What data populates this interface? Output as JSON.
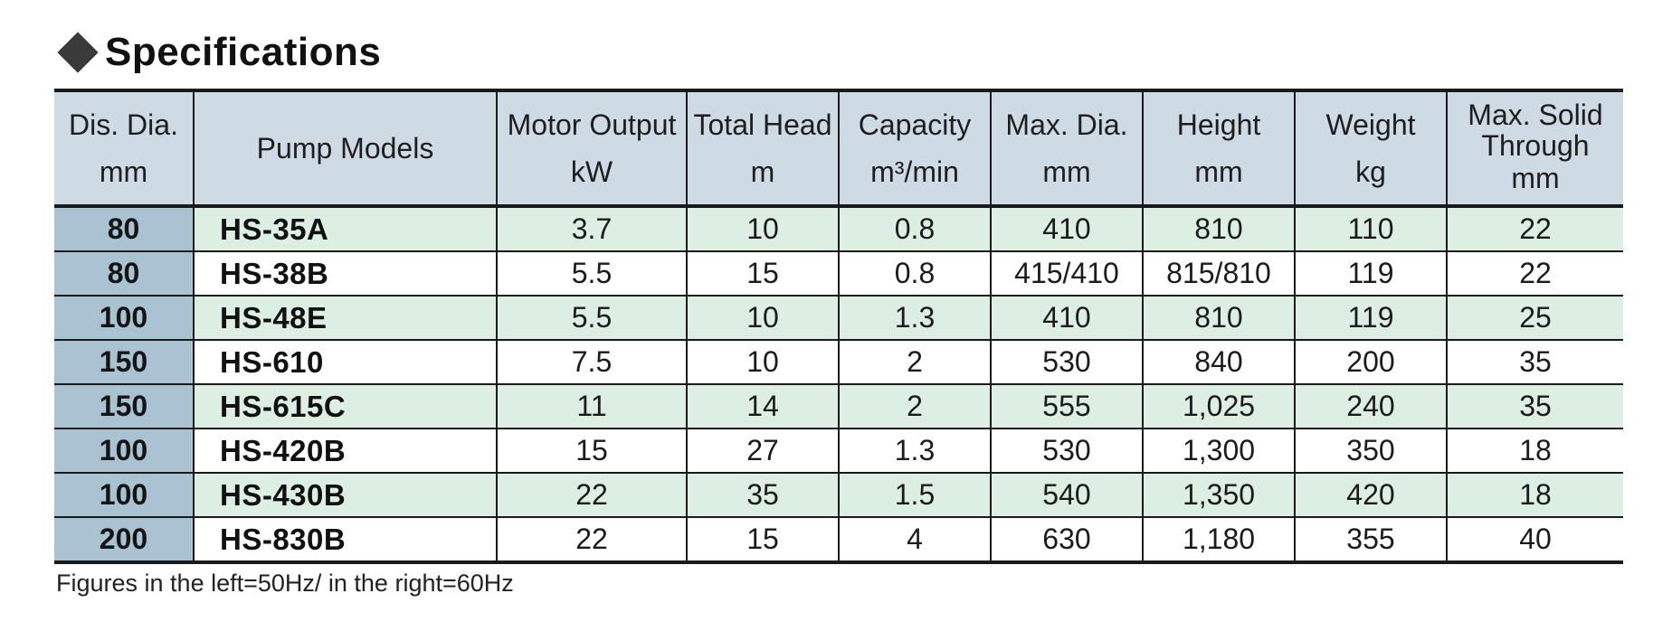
{
  "title": "Specifications",
  "table": {
    "headers": [
      {
        "line1": "Dis. Dia.",
        "line2": "mm"
      },
      {
        "line1": "Pump Models",
        "line2": ""
      },
      {
        "line1": "Motor Output",
        "line2": "kW"
      },
      {
        "line1": "Total Head",
        "line2": "m"
      },
      {
        "line1": "Capacity",
        "line2": "m³/min"
      },
      {
        "line1": "Max. Dia.",
        "line2": "mm"
      },
      {
        "line1": "Height",
        "line2": "mm"
      },
      {
        "line1": "Weight",
        "line2": "kg"
      },
      {
        "line1": "Max. Solid",
        "line1b": "Through",
        "line2": "mm"
      }
    ],
    "rows": [
      [
        "80",
        "HS-35A",
        "3.7",
        "10",
        "0.8",
        "410",
        "810",
        "110",
        "22"
      ],
      [
        "80",
        "HS-38B",
        "5.5",
        "15",
        "0.8",
        "415/410",
        "815/810",
        "119",
        "22"
      ],
      [
        "100",
        "HS-48E",
        "5.5",
        "10",
        "1.3",
        "410",
        "810",
        "119",
        "25"
      ],
      [
        "150",
        "HS-610",
        "7.5",
        "10",
        "2",
        "530",
        "840",
        "200",
        "35"
      ],
      [
        "150",
        "HS-615C",
        "11",
        "14",
        "2",
        "555",
        "1,025",
        "240",
        "35"
      ],
      [
        "100",
        "HS-420B",
        "15",
        "27",
        "1.3",
        "530",
        "1,300",
        "350",
        "18"
      ],
      [
        "100",
        "HS-430B",
        "22",
        "35",
        "1.5",
        "540",
        "1,350",
        "420",
        "18"
      ],
      [
        "200",
        "HS-830B",
        "22",
        "15",
        "4",
        "630",
        "1,180",
        "355",
        "40"
      ]
    ]
  },
  "footnote": "Figures in the left=50Hz/ in the right=60Hz",
  "colors": {
    "header_bg": "#cfdbe4",
    "dia_col_bg": "#a9c3d3",
    "row_stripe": "#dcefe2",
    "rule": "#1a1a1a"
  }
}
